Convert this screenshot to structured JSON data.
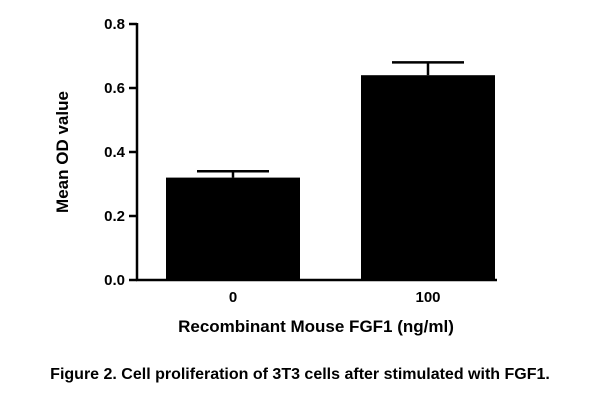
{
  "chart_data": {
    "type": "bar",
    "categories": [
      "0",
      "100"
    ],
    "values": [
      0.32,
      0.64
    ],
    "error": [
      0.02,
      0.04
    ],
    "xlabel": "Recombinant Mouse FGF1 (ng/ml)",
    "ylabel": "Mean OD value",
    "ylim": [
      0,
      0.8
    ],
    "yticks": [
      "0.0",
      "0.2",
      "0.4",
      "0.6",
      "0.8"
    ],
    "bar_color": "#000000",
    "grid": false,
    "legend": "none"
  },
  "caption": "Figure 2. Cell proliferation of 3T3 cells after stimulated with FGF1."
}
